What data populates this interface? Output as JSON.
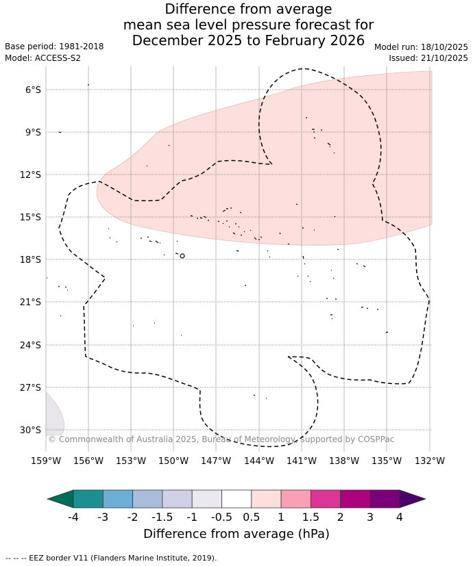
{
  "title": {
    "line1": "Difference from average",
    "line2": "mean sea level pressure forecast for",
    "line3": "December 2025 to February 2026"
  },
  "meta": {
    "base_period": "Base period: 1981-2018",
    "model": "Model: ACCESS-S2",
    "model_run": "Model run: 18/10/2025",
    "issued": "Issued: 21/10/2025"
  },
  "map": {
    "lat_labels": [
      "6°S",
      "9°S",
      "12°S",
      "15°S",
      "18°S",
      "21°S",
      "24°S",
      "27°S",
      "30°S"
    ],
    "lon_labels": [
      "159°W",
      "156°W",
      "153°W",
      "150°W",
      "147°W",
      "144°W",
      "141°W",
      "138°W",
      "135°W",
      "132°W"
    ],
    "anomaly_region_color": "#fde0dd",
    "credit": "© Commonwealth of Australia 2025, Bureau of Meteorology, supported by COSPPac"
  },
  "colorbar": {
    "labels": [
      "-4",
      "-3",
      "-2",
      "-1.5",
      "-1",
      "-0.5",
      "0.5",
      "1",
      "1.5",
      "2",
      "3",
      "4"
    ],
    "colors": [
      "#1a9093",
      "#6baed6",
      "#a8bddc",
      "#d0d1e6",
      "#ebe9ef",
      "#ffffff",
      "#fde0dd",
      "#fa9fb5",
      "#dd3497",
      "#ae017e",
      "#7a0177"
    ],
    "under_color": "#016c59",
    "over_color": "#49006a",
    "title": "Difference from average (hPa)"
  },
  "footnote": "--  --  -- EEZ border V11 (Flanders Marine Institute, 2019)."
}
